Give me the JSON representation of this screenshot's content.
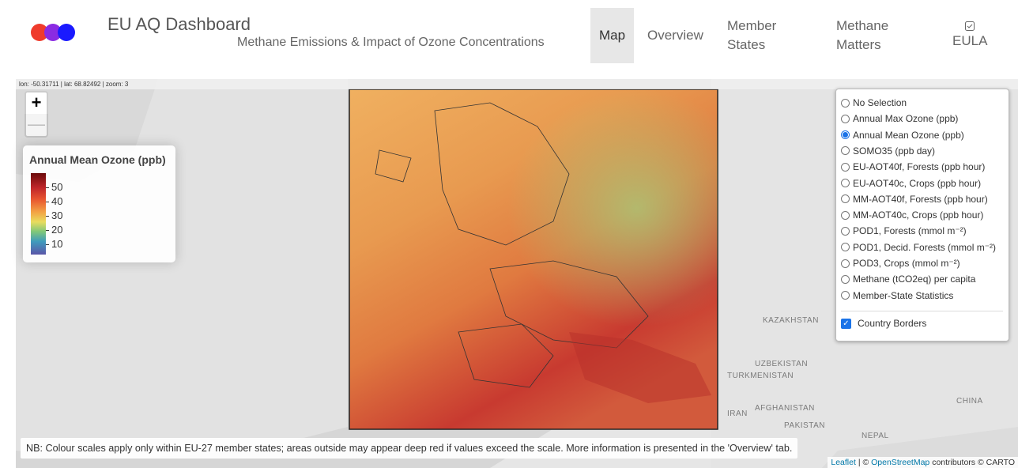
{
  "header": {
    "title": "EU AQ Dashboard",
    "subtitle": "Methane Emissions & Impact of Ozone Concentrations",
    "nav": [
      "Map",
      "Overview",
      "Member States",
      "Methane Matters",
      "EULA"
    ]
  },
  "map": {
    "coords": "lon: -50.31711 | lat: 68.82492 | zoom: 3",
    "zoom_controls": [
      "+",
      "—"
    ],
    "labels": [
      "KAZAKHSTAN",
      "UZBEKISTAN",
      "TURKMENISTAN",
      "IRAN",
      "AFGHANISTAN",
      "PAKISTAN",
      "NEPAL",
      "CHINA"
    ],
    "legend": {
      "title": "Annual Mean Ozone (ppb)",
      "lim": [
        3,
        60
      ],
      "ticks": [
        50,
        40,
        30,
        20,
        10
      ]
    },
    "layers": {
      "options": [
        "No Selection",
        "Annual Max Ozone (ppb)",
        "Annual Mean Ozone (ppb)",
        "SOMO35 (ppb day)",
        "EU-AOT40f, Forests (ppb hour)",
        "EU-AOT40c, Crops (ppb hour)",
        "MM-AOT40f, Forests (ppb hour)",
        "MM-AOT40c, Crops (ppb hour)",
        "POD1, Forests (mmol m⁻²)",
        "POD1, Decid. Forests (mmol m⁻²)",
        "POD3, Crops (mmol m⁻²)",
        "Methane (tCO2eq) per capita",
        "Member-State Statistics"
      ],
      "selected": "Annual Mean Ozone (ppb)",
      "checkbox": "Country Borders",
      "checked": true
    },
    "note": "NB: Colour scales apply only within EU-27 member states; areas outside may appear deep red if values exceed the scale. More information is presented in the 'Overview' tab.",
    "attribution": [
      "Leaflet",
      "| ©",
      "OpenStreetMap",
      "contributors © CARTO"
    ]
  }
}
